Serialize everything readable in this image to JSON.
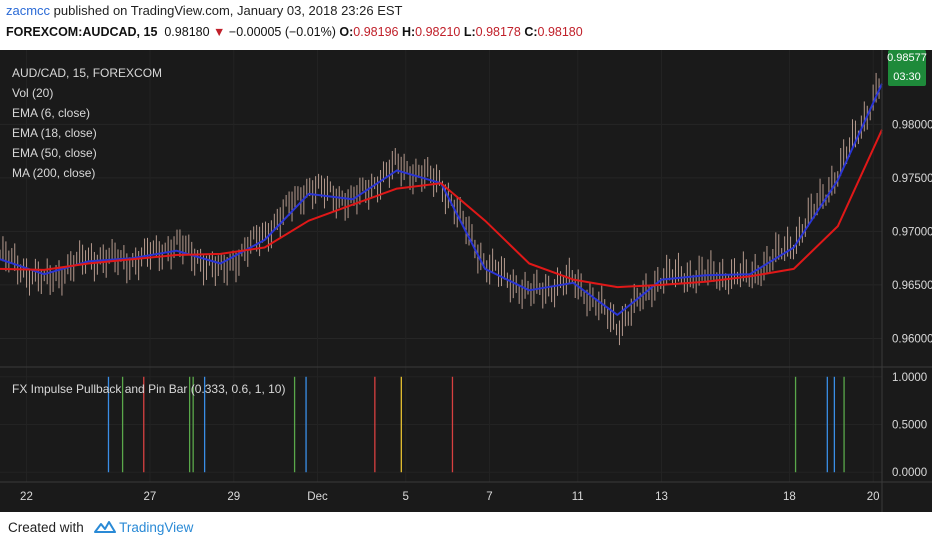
{
  "header": {
    "user": "zacmcc",
    "published_text": " published on TradingView.com, January 03, 2018 23:26 EST",
    "symbol": "FOREXCOM:AUDCAD, 15",
    "last": "0.98180",
    "arrow": "▼",
    "change": "−0.00005 (−0.01%)",
    "o_label": "O:",
    "o_value": "0.98196",
    "h_label": "H:",
    "h_value": "0.98210",
    "l_label": "L:",
    "l_value": "0.98178",
    "c_label": "C:",
    "c_value": "0.98180"
  },
  "legend": {
    "items": [
      "AUD/CAD, 15, FOREXCOM",
      "Vol (20)",
      "EMA (6, close)",
      "EMA (18, close)",
      "EMA (50, close)",
      "MA (200, close)"
    ],
    "indicator": "FX Impulse Pullback and Pin Bar (0.333, 0.6, 1, 10)"
  },
  "price_badge": {
    "value": "0.98577",
    "time": "03:30"
  },
  "colors": {
    "background": "#1a1a1a",
    "candles": "#b59a8e",
    "ema_fast": "#2a35d4",
    "ema_slow": "#e01818",
    "badge": "#1e8a3a",
    "signal_blue": "#3a8ee6",
    "signal_green": "#5aa84a",
    "signal_red": "#d84040",
    "signal_yellow": "#e6c030"
  },
  "footer": {
    "created_with": "Created with",
    "brand": "TradingView",
    "logo_icon": "tradingview-logo-icon"
  },
  "chart_data": [
    {
      "type": "line",
      "title": "AUD/CAD, 15, FOREXCOM",
      "ylim": [
        0.9578,
        0.9862
      ],
      "y_ticks": [
        "0.98000",
        "0.97500",
        "0.97000",
        "0.96500",
        "0.96000"
      ],
      "y_tick_values": [
        0.98,
        0.975,
        0.97,
        0.965,
        0.96
      ],
      "x_ticks": [
        "22",
        "27",
        "29",
        "Dec",
        "5",
        "7",
        "11",
        "13",
        "18",
        "20"
      ],
      "x": [
        0,
        5,
        10,
        15,
        20,
        25,
        30,
        35,
        40,
        45,
        50,
        55,
        60,
        65,
        70,
        75,
        80,
        85,
        90,
        95,
        100
      ],
      "series": [
        {
          "name": "price",
          "values": [
            0.9678,
            0.9653,
            0.9676,
            0.9672,
            0.9688,
            0.9662,
            0.9698,
            0.9742,
            0.9728,
            0.9762,
            0.9746,
            0.967,
            0.9642,
            0.9655,
            0.9612,
            0.9658,
            0.966,
            0.9658,
            0.969,
            0.9755,
            0.984
          ]
        },
        {
          "name": "EMA (6, close)",
          "values": [
            0.9674,
            0.966,
            0.9672,
            0.9675,
            0.9682,
            0.967,
            0.9692,
            0.9735,
            0.973,
            0.9757,
            0.9745,
            0.9665,
            0.9645,
            0.9652,
            0.9622,
            0.9655,
            0.9659,
            0.966,
            0.9685,
            0.9748,
            0.9838
          ]
        },
        {
          "name": "EMA (50, close)",
          "values": [
            0.9665,
            0.9664,
            0.967,
            0.9674,
            0.9678,
            0.9679,
            0.9685,
            0.971,
            0.9725,
            0.974,
            0.9745,
            0.971,
            0.967,
            0.9655,
            0.9648,
            0.965,
            0.9653,
            0.9658,
            0.9665,
            0.9705,
            0.9795
          ]
        }
      ]
    },
    {
      "type": "bar",
      "title": "FX Impulse Pullback and Pin Bar (0.333, 0.6, 1, 10)",
      "ylim": [
        -0.05,
        1.05
      ],
      "y_ticks": [
        "1.0000",
        "0.5000",
        "0.0000"
      ],
      "y_tick_values": [
        1.0,
        0.5,
        0.0
      ],
      "signals": [
        {
          "x": 12.3,
          "value": 1,
          "color": "blue"
        },
        {
          "x": 13.9,
          "value": 1,
          "color": "green"
        },
        {
          "x": 16.3,
          "value": 1,
          "color": "red"
        },
        {
          "x": 21.5,
          "value": 1,
          "color": "green"
        },
        {
          "x": 21.9,
          "value": 1,
          "color": "green"
        },
        {
          "x": 23.2,
          "value": 1,
          "color": "blue"
        },
        {
          "x": 33.4,
          "value": 1,
          "color": "green"
        },
        {
          "x": 34.7,
          "value": 1,
          "color": "blue"
        },
        {
          "x": 42.5,
          "value": 1,
          "color": "red"
        },
        {
          "x": 45.5,
          "value": 1,
          "color": "yellow"
        },
        {
          "x": 51.3,
          "value": 1,
          "color": "red"
        },
        {
          "x": 90.2,
          "value": 1,
          "color": "green"
        },
        {
          "x": 93.8,
          "value": 1,
          "color": "blue"
        },
        {
          "x": 94.6,
          "value": 1,
          "color": "blue"
        },
        {
          "x": 95.7,
          "value": 1,
          "color": "green"
        }
      ]
    }
  ]
}
